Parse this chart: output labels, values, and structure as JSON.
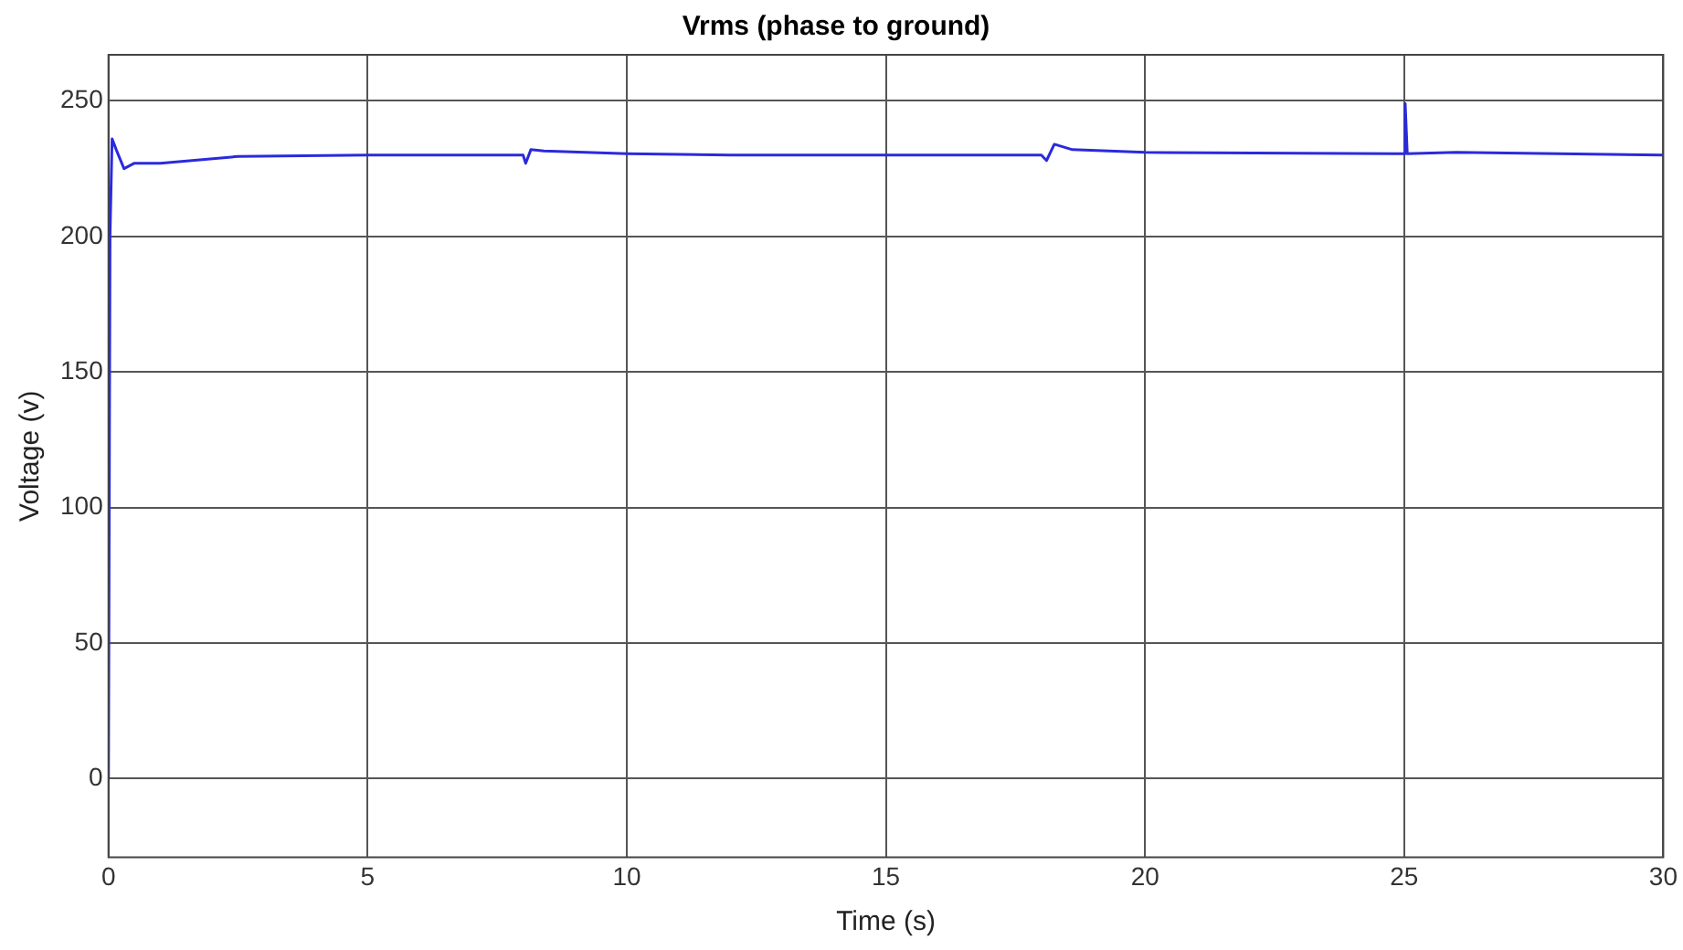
{
  "chart_data": {
    "type": "line",
    "title": "Vrms (phase to ground)",
    "xlabel": "Time (s)",
    "ylabel": "Voltage (v)",
    "xlim": [
      0,
      30
    ],
    "xticks": [
      0,
      5,
      10,
      15,
      20,
      25,
      30
    ],
    "ylim": [
      -29,
      267
    ],
    "yticks": [
      0,
      50,
      100,
      150,
      200,
      250
    ],
    "grid": true,
    "marker": "none",
    "line_style": "solid",
    "series": [
      {
        "color": "#2a2adc",
        "x": [
          0,
          0.03,
          0.07,
          0.15,
          0.3,
          0.5,
          1,
          2.5,
          5,
          8,
          8.05,
          8.15,
          8.4,
          10,
          12,
          15,
          18,
          18.1,
          18.25,
          18.6,
          20,
          25,
          25.02,
          25.06,
          26,
          30
        ],
        "values": [
          0,
          200,
          236,
          232,
          225,
          227,
          227,
          229.5,
          230,
          230,
          227,
          232,
          231.5,
          230.5,
          230,
          230,
          230,
          228,
          234,
          232,
          231,
          230.5,
          249,
          230.5,
          231,
          230
        ]
      }
    ]
  }
}
